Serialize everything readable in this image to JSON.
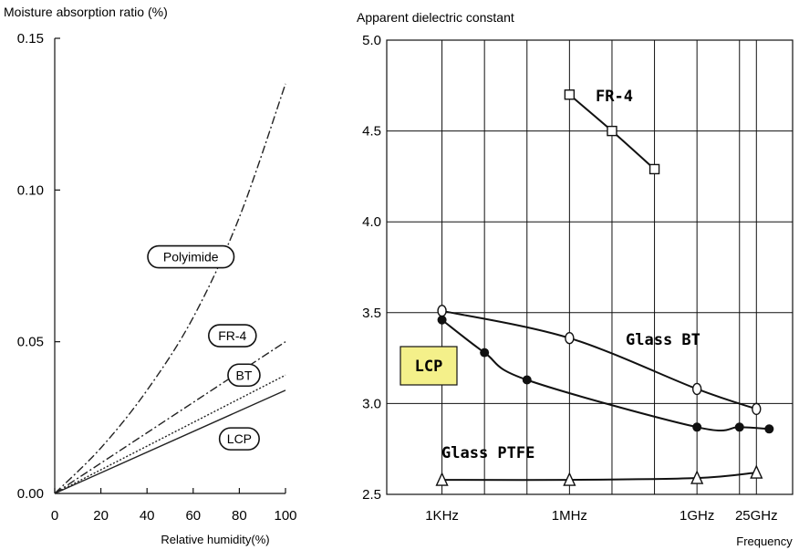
{
  "chart_data": [
    {
      "type": "line",
      "ylabel": "Moisture absorption ratio (%)",
      "xlabel": "Relative humidity(%)",
      "xlim": [
        0,
        100
      ],
      "ylim": [
        0,
        0.15
      ],
      "x_ticks": [
        "0",
        "20",
        "40",
        "60",
        "80",
        "100"
      ],
      "y_ticks": [
        "0.00",
        "0.05",
        "0.10",
        "0.15"
      ],
      "grid": false,
      "series": [
        {
          "name": "Polyimide",
          "style": "dash-dot",
          "points": [
            [
              0,
              0
            ],
            [
              20,
              0.015
            ],
            [
              40,
              0.034
            ],
            [
              60,
              0.058
            ],
            [
              80,
              0.091
            ],
            [
              100,
              0.135
            ]
          ]
        },
        {
          "name": "FR-4",
          "style": "dash-dot",
          "points": [
            [
              0,
              0
            ],
            [
              100,
              0.05
            ]
          ]
        },
        {
          "name": "BT",
          "style": "dotted",
          "points": [
            [
              0,
              0
            ],
            [
              100,
              0.039
            ]
          ]
        },
        {
          "name": "LCP",
          "style": "solid",
          "points": [
            [
              0,
              0
            ],
            [
              100,
              0.034
            ]
          ]
        }
      ],
      "labels": [
        {
          "text": "Polyimide",
          "x": 59,
          "y": 0.078
        },
        {
          "text": "FR-4",
          "x": 77,
          "y": 0.052
        },
        {
          "text": "BT",
          "x": 82,
          "y": 0.039
        },
        {
          "text": "LCP",
          "x": 80,
          "y": 0.018
        }
      ]
    },
    {
      "type": "line",
      "ylabel": "Apparent dielectric constant",
      "xlabel": "Frequency",
      "x_scale": "log",
      "x_unit": "Hz",
      "ylim": [
        2.5,
        5.0
      ],
      "y_ticks": [
        "2.5",
        "3.0",
        "3.5",
        "4.0",
        "4.5",
        "5.0"
      ],
      "x_ticks": [
        {
          "label": "1KHz",
          "value": 1000
        },
        {
          "label": "1MHz",
          "value": 1000000
        },
        {
          "label": "1GHz",
          "value": 1000000000
        },
        {
          "label": "25GHz",
          "value": 25000000000
        }
      ],
      "grid": true,
      "series": [
        {
          "name": "FR-4",
          "marker": "open-square",
          "points": [
            [
              1000000,
              4.7
            ],
            [
              10000000,
              4.5
            ],
            [
              100000000,
              4.29
            ]
          ]
        },
        {
          "name": "Glass BT",
          "marker": "open-circle",
          "points": [
            [
              1000,
              3.51
            ],
            [
              1000000,
              3.36
            ],
            [
              1000000000,
              3.08
            ],
            [
              25000000000,
              2.97
            ]
          ]
        },
        {
          "name": "LCP",
          "marker": "filled-circle",
          "points": [
            [
              1000,
              3.46
            ],
            [
              10000,
              3.28
            ],
            [
              100000,
              3.13
            ],
            [
              1000000000,
              2.87
            ],
            [
              10000000000,
              2.87
            ],
            [
              50000000000,
              2.86
            ]
          ]
        },
        {
          "name": "Glass PTFE",
          "marker": "open-triangle",
          "points": [
            [
              1000,
              2.58
            ],
            [
              1000000,
              2.58
            ],
            [
              1000000000,
              2.59
            ],
            [
              25000000000,
              2.62
            ]
          ]
        }
      ],
      "labels": [
        {
          "text": "FR-4",
          "boxed": false
        },
        {
          "text": "Glass BT",
          "boxed": false
        },
        {
          "text": "LCP",
          "boxed": true,
          "fill": "#f4f08a"
        },
        {
          "text": "Glass PTFE",
          "boxed": false
        }
      ]
    }
  ]
}
